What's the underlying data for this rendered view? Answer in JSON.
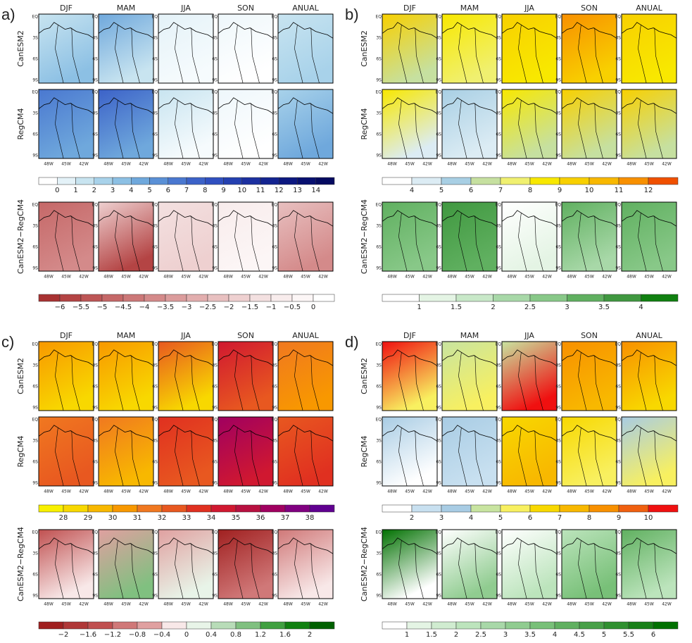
{
  "panels": [
    {
      "label": "a)",
      "seasons": [
        "DJF",
        "MAM",
        "JJA",
        "SON",
        "ANUAL"
      ],
      "rows": [
        "CanESM2",
        "RegCM4"
      ],
      "diff_row": "CanESM2−RegCM4",
      "colorbar1": [
        "0",
        "1",
        "2",
        "3",
        "4",
        "5",
        "6",
        "7",
        "8",
        "9",
        "10",
        "11",
        "12",
        "13",
        "14"
      ],
      "colorbar2": [
        "−6",
        "−5.5",
        "−5",
        "−4.5",
        "−4",
        "−3.5",
        "−3",
        "−2.5",
        "−2",
        "−1.5",
        "−1",
        "−0.5",
        "0"
      ],
      "lon_ticks": [
        "48W",
        "45W",
        "42W"
      ],
      "lat_ticks": [
        "EQ",
        "3S",
        "6S",
        "9S"
      ]
    },
    {
      "label": "b)",
      "seasons": [
        "DJF",
        "MAM",
        "JJA",
        "SON",
        "ANUAL"
      ],
      "rows": [
        "CanESM2",
        "RegCM4"
      ],
      "diff_row": "CanESM2−RegCM4",
      "colorbar1": [
        "4",
        "5",
        "6",
        "7",
        "8",
        "9",
        "10",
        "11",
        "12"
      ],
      "colorbar2": [
        "1",
        "1.5",
        "2",
        "2.5",
        "3",
        "3.5",
        "4"
      ],
      "lon_ticks": [
        "48W",
        "45W",
        "42W"
      ],
      "lat_ticks": [
        "EQ",
        "3S",
        "6S",
        "9S"
      ]
    },
    {
      "label": "c)",
      "seasons": [
        "DJF",
        "MAM",
        "JJA",
        "SON",
        "ANUAL"
      ],
      "rows": [
        "CanESM2",
        "RegCM4"
      ],
      "diff_row": "CanESM2−RegCM4",
      "colorbar1": [
        "28",
        "29",
        "30",
        "31",
        "32",
        "33",
        "34",
        "35",
        "36",
        "37",
        "38"
      ],
      "colorbar2": [
        "−2",
        "−1.6",
        "−1.2",
        "−0.8",
        "−0.4",
        "0",
        "0.4",
        "0.8",
        "1.2",
        "1.6",
        "2"
      ],
      "lon_ticks": [
        "48W",
        "45W",
        "42W"
      ],
      "lat_ticks": [
        "EQ",
        "3S",
        "6S",
        "9S"
      ]
    },
    {
      "label": "d)",
      "seasons": [
        "DJF",
        "MAM",
        "JJA",
        "SON",
        "ANUAL"
      ],
      "rows": [
        "CanESM2",
        "RegCM4"
      ],
      "diff_row": "CanESM2−RegCM4",
      "colorbar1": [
        "2",
        "3",
        "4",
        "5",
        "6",
        "7",
        "8",
        "9",
        "10"
      ],
      "colorbar2": [
        "1",
        "1.5",
        "2",
        "2.5",
        "3",
        "3.5",
        "4",
        "4.5",
        "5",
        "5.5",
        "6"
      ],
      "lon_ticks": [
        "48W",
        "45W",
        "42W"
      ],
      "lat_ticks": [
        "EQ",
        "3S",
        "6S",
        "9S"
      ]
    }
  ]
}
